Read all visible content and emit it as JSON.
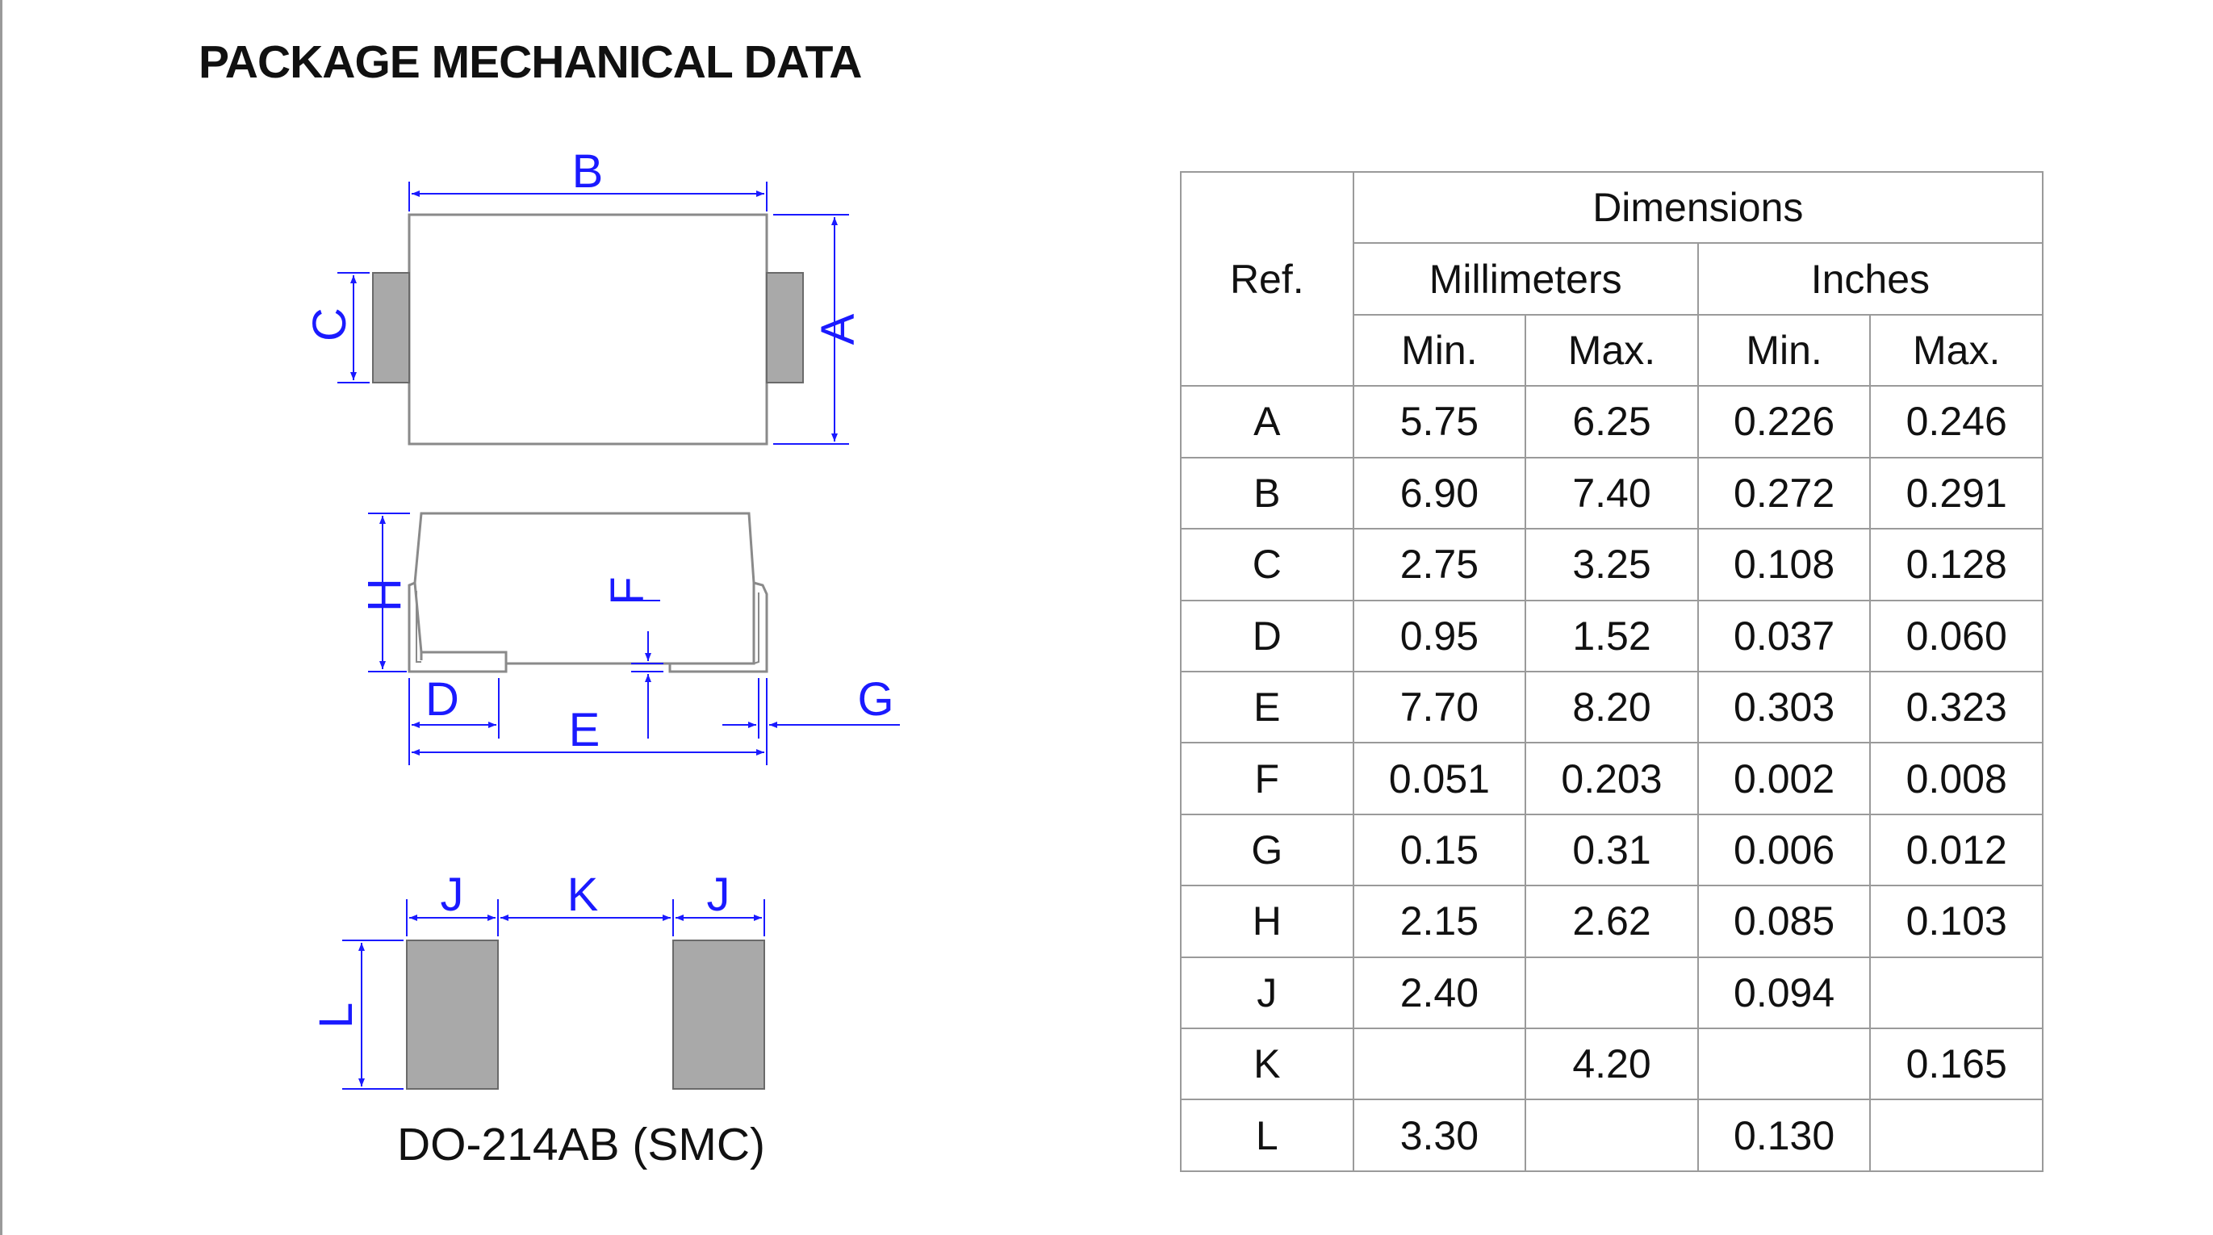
{
  "title": "PACKAGE MECHANICAL DATA",
  "package_name": "DO-214AB (SMC)",
  "drawing_labels": {
    "A": "A",
    "B": "B",
    "C": "C",
    "D": "D",
    "E": "E",
    "F": "F",
    "G": "G",
    "H": "H",
    "J": "J",
    "K": "K",
    "L": "L"
  },
  "colors": {
    "dimension": "#1a1aff",
    "body_outline": "#8a8a8a",
    "terminal_fill": "#a9a9a9",
    "table_border": "#9a9a9a"
  },
  "table": {
    "ref_header": "Ref.",
    "dimensions_header": "Dimensions",
    "mm_header": "Millimeters",
    "in_header": "Inches",
    "min_label": "Min.",
    "max_label": "Max.",
    "rows": [
      {
        "ref": "A",
        "mm_min": "5.75",
        "mm_max": "6.25",
        "in_min": "0.226",
        "in_max": "0.246"
      },
      {
        "ref": "B",
        "mm_min": "6.90",
        "mm_max": "7.40",
        "in_min": "0.272",
        "in_max": "0.291"
      },
      {
        "ref": "C",
        "mm_min": "2.75",
        "mm_max": "3.25",
        "in_min": "0.108",
        "in_max": "0.128"
      },
      {
        "ref": "D",
        "mm_min": "0.95",
        "mm_max": "1.52",
        "in_min": "0.037",
        "in_max": "0.060"
      },
      {
        "ref": "E",
        "mm_min": "7.70",
        "mm_max": "8.20",
        "in_min": "0.303",
        "in_max": "0.323"
      },
      {
        "ref": "F",
        "mm_min": "0.051",
        "mm_max": "0.203",
        "in_min": "0.002",
        "in_max": "0.008"
      },
      {
        "ref": "G",
        "mm_min": "0.15",
        "mm_max": "0.31",
        "in_min": "0.006",
        "in_max": "0.012"
      },
      {
        "ref": "H",
        "mm_min": "2.15",
        "mm_max": "2.62",
        "in_min": "0.085",
        "in_max": "0.103"
      },
      {
        "ref": "J",
        "mm_min": "2.40",
        "mm_max": "",
        "in_min": "0.094",
        "in_max": ""
      },
      {
        "ref": "K",
        "mm_min": "",
        "mm_max": "4.20",
        "in_min": "",
        "in_max": "0.165"
      },
      {
        "ref": "L",
        "mm_min": "3.30",
        "mm_max": "",
        "in_min": "0.130",
        "in_max": ""
      }
    ]
  }
}
